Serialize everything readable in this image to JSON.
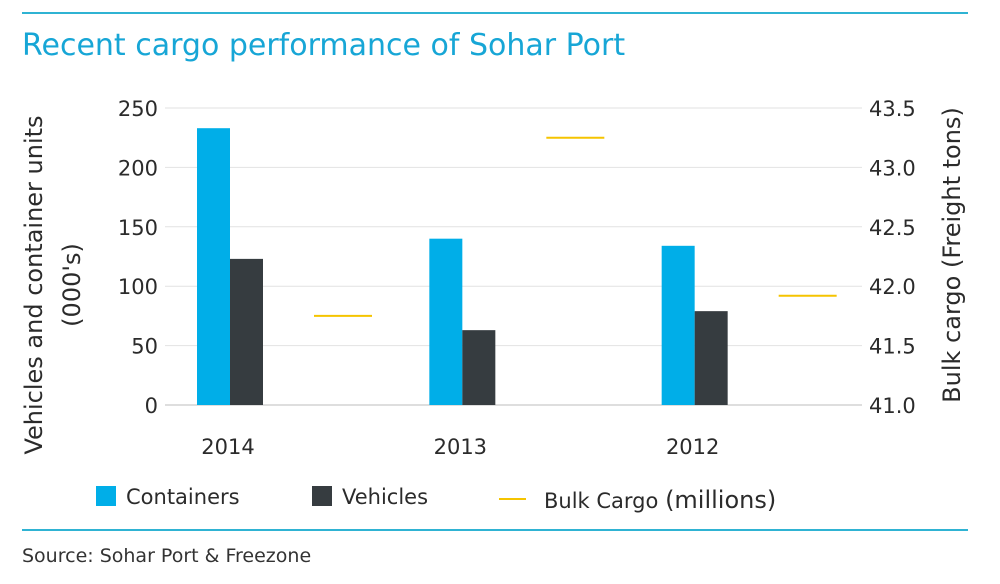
{
  "title": "Recent cargo performance of Sohar Port",
  "source": "Source: Sohar Port & Freezone",
  "colors": {
    "containers": "#00aee8",
    "vehicles": "#363c40",
    "bulk": "#f5c400",
    "accent": "#2fb3d3",
    "grid": "#e2e2e2"
  },
  "legend": {
    "containers": "Containers",
    "vehicles": "Vehicles",
    "bulk": "Bulk Cargo",
    "bulk_suffix": "(millions)"
  },
  "chart_data": {
    "type": "bar",
    "categories": [
      "2014",
      "2013",
      "2012"
    ],
    "series": [
      {
        "name": "Containers",
        "axis": "left",
        "kind": "bar",
        "values": [
          233,
          140,
          134
        ]
      },
      {
        "name": "Vehicles",
        "axis": "left",
        "kind": "bar",
        "values": [
          123,
          63,
          79
        ]
      },
      {
        "name": "Bulk Cargo (millions)",
        "axis": "right",
        "kind": "marker",
        "values": [
          41.75,
          43.25,
          41.92
        ]
      }
    ],
    "ylabel": "Vehicles and container units (000's)",
    "ylabel_lines": [
      "Vehicles and container units",
      "(000's)"
    ],
    "y2label": "Bulk cargo (Freight tons)",
    "ylim": [
      0,
      250
    ],
    "y2lim": [
      41.0,
      43.5
    ],
    "yticks": [
      "0",
      "50",
      "100",
      "150",
      "200",
      "250"
    ],
    "y2ticks": [
      "41.0",
      "41.5",
      "42.0",
      "42.5",
      "43.0",
      "43.5"
    ],
    "grid": true,
    "legend_position": "bottom"
  }
}
